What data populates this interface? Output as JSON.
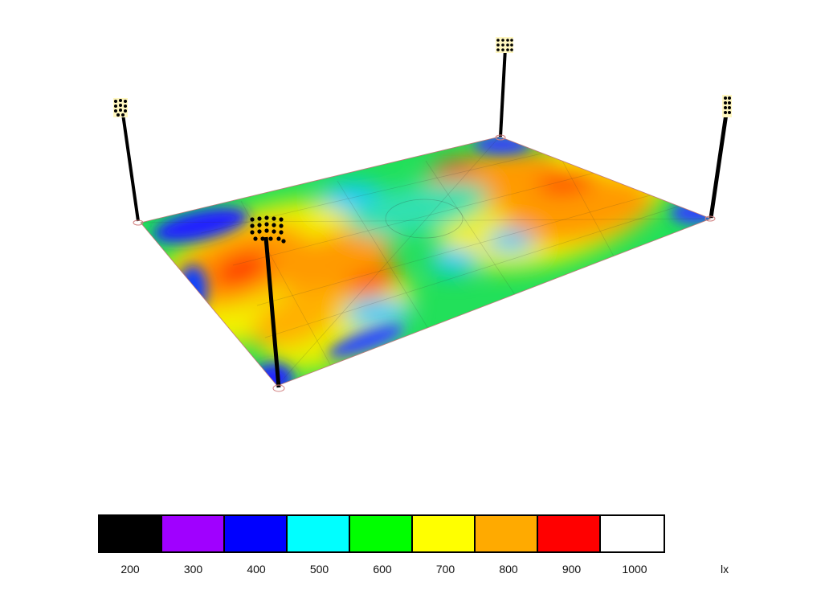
{
  "legend": {
    "unit": "lx",
    "bins": [
      {
        "label": "200",
        "color": "#000000"
      },
      {
        "label": "300",
        "color": "#a000ff"
      },
      {
        "label": "400",
        "color": "#0000ff"
      },
      {
        "label": "500",
        "color": "#00ffff"
      },
      {
        "label": "600",
        "color": "#00ff00"
      },
      {
        "label": "700",
        "color": "#ffff00"
      },
      {
        "label": "800",
        "color": "#ffaa00"
      },
      {
        "label": "900",
        "color": "#ff0000"
      },
      {
        "label": "1000",
        "color": "#ffffff"
      }
    ]
  },
  "field": {
    "poles": 4,
    "illuminance_scale_lx": [
      200,
      1000
    ]
  }
}
